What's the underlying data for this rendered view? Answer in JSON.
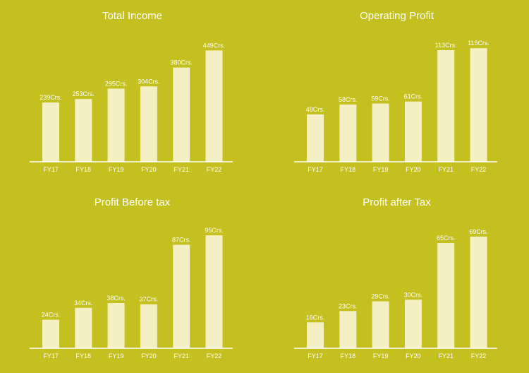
{
  "theme": {
    "background": "#C3C020",
    "bar_color": "#F4F0C3",
    "text_color": "#FFFFFF",
    "axis_color": "#FFFFFF"
  },
  "chart_data": [
    {
      "type": "bar",
      "title": "Total Income",
      "categories": [
        "FY17",
        "FY18",
        "FY19",
        "FY20",
        "FY21",
        "FY22"
      ],
      "values": [
        239,
        253,
        295,
        304,
        380,
        449
      ],
      "labels": [
        "239Crs.",
        "253Crs.",
        "295Crs.",
        "304Crs.",
        "380Crs.",
        "449Crs."
      ],
      "xlabel": "",
      "ylabel": "",
      "ylim": [
        0,
        470
      ],
      "grid": false
    },
    {
      "type": "bar",
      "title": "Operating Profit",
      "categories": [
        "FY17",
        "FY18",
        "FY19",
        "FY20",
        "FY21",
        "FY22"
      ],
      "values": [
        48,
        58,
        59,
        61,
        113,
        115
      ],
      "labels": [
        "48Crs.",
        "58Crs.",
        "59Crs.",
        "61Crs.",
        "113Crs.",
        "115Crs."
      ],
      "xlabel": "",
      "ylabel": "",
      "ylim": [
        0,
        118
      ],
      "grid": false
    },
    {
      "type": "bar",
      "title": "Profit Before tax",
      "categories": [
        "FY17",
        "FY18",
        "FY19",
        "FY20",
        "FY21",
        "FY22"
      ],
      "values": [
        24,
        34,
        38,
        37,
        87,
        95
      ],
      "labels": [
        "24Crs.",
        "34Crs.",
        "38Crs.",
        "37Crs.",
        "87Crs.",
        "95Crs."
      ],
      "xlabel": "",
      "ylabel": "",
      "ylim": [
        0,
        98
      ],
      "grid": false
    },
    {
      "type": "bar",
      "title": "Profit after Tax",
      "categories": [
        "FY17",
        "FY18",
        "FY19",
        "FY20",
        "FY21",
        "FY22"
      ],
      "values": [
        16,
        23,
        29,
        30,
        65,
        69
      ],
      "labels": [
        "16Crs.",
        "23Crs.",
        "29Crs.",
        "30Crs.",
        "65Crs.",
        "69Crs."
      ],
      "xlabel": "",
      "ylabel": "",
      "ylim": [
        0,
        72
      ],
      "grid": false
    }
  ]
}
